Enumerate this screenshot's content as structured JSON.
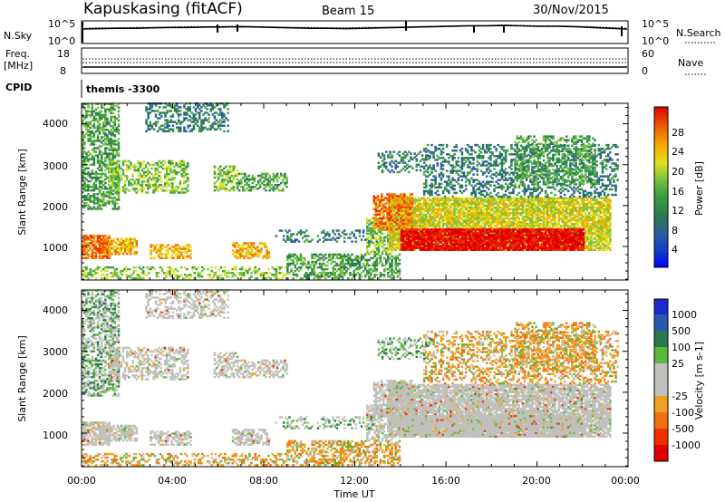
{
  "header": {
    "station": "Kapuskasing (fitACF)",
    "beam": "Beam 15",
    "date": "30/Nov/2015"
  },
  "chart_data": [
    {
      "type": "line",
      "panel": "noise",
      "left_label": "N.Sky",
      "right_label": "N.Search",
      "left_ticks": [
        "10^5",
        "10^0"
      ],
      "right_ticks": [
        "10^5",
        "10^0"
      ],
      "series": [
        {
          "values": [
            3.4,
            3.5,
            3.6,
            3.6,
            3.7,
            3.8,
            3.8,
            3.9,
            3.9,
            4.0,
            3.9,
            3.8,
            3.7,
            3.6,
            3.6,
            3.5,
            3.6,
            3.7,
            3.8,
            3.9,
            4.0,
            4.1,
            4.2,
            4.2,
            4.3,
            4.2,
            4.1,
            4.1,
            4.0,
            3.8,
            3.6,
            3.4
          ]
        },
        {
          "values": [
            3.6,
            3.7,
            3.7,
            3.8,
            3.8,
            3.9,
            4.0,
            4.0,
            4.1,
            4.1,
            4.0,
            3.9,
            3.8,
            3.8,
            3.7,
            3.7,
            3.8,
            3.8,
            3.9,
            4.0,
            4.1,
            4.2,
            4.3,
            4.3,
            4.4,
            4.3,
            4.2,
            4.2,
            4.1,
            4.0,
            3.8,
            3.6
          ]
        }
      ]
    },
    {
      "type": "line",
      "panel": "frequency",
      "left_label": "Freq.",
      "left_unit": "[MHz]",
      "left_ticks": [
        "18",
        "8"
      ],
      "right_label": "Nave",
      "right_ticks": [
        "60",
        "0"
      ]
    },
    {
      "type": "heatmap",
      "panel": "power",
      "ylabel": "Slant Range [km]",
      "yticks": [
        "4000",
        "3000",
        "2000",
        "1000"
      ],
      "ylim": [
        180,
        4500
      ],
      "colorbar_label": "Power [dB]",
      "colorbar_ticks": [
        "28",
        "24",
        "20",
        "16",
        "12",
        "8",
        "4"
      ],
      "colors": [
        "#0000ff",
        "#1040c8",
        "#2a5aa0",
        "#2e7a50",
        "#3aa040",
        "#7cc23c",
        "#e0e020",
        "#f4b000",
        "#f07000",
        "#f03000",
        "#e00000"
      ]
    },
    {
      "type": "heatmap",
      "panel": "velocity",
      "ylabel": "Slant Range [km]",
      "yticks": [
        "4000",
        "3000",
        "2000",
        "1000"
      ],
      "ylim": [
        180,
        4500
      ],
      "colorbar_label": "Velocity [m s-1]",
      "colorbar_ticks": [
        "1000",
        "500",
        "100",
        "25",
        "-25",
        "-100",
        "-500",
        "-1000"
      ],
      "colors": [
        "#1a2ad0",
        "#2a5ab0",
        "#2a7a50",
        "#5ab83a",
        "#c0c0bc",
        "#c0c0bc",
        "#f0a020",
        "#f07010",
        "#f03000",
        "#e00000"
      ],
      "xlabel": "Time UT",
      "xticks": [
        "00:00",
        "04:00",
        "08:00",
        "12:00",
        "16:00",
        "20:00",
        "00:00"
      ],
      "xlim_hours": [
        0,
        24
      ]
    }
  ],
  "cpid": {
    "label": "CPID",
    "value": "themis -3300"
  }
}
